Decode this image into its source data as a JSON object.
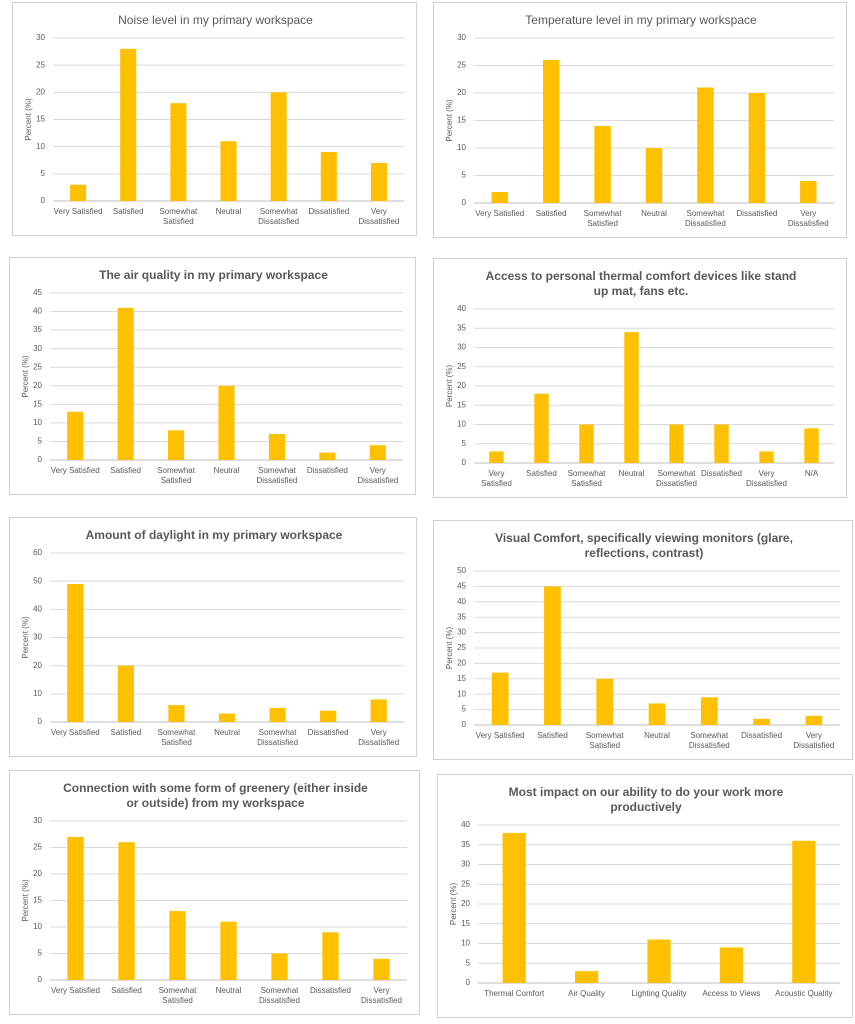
{
  "chart_data": [
    {
      "type": "bar",
      "title": "Noise level in my primary workspace",
      "title_bold": false,
      "ylabel": "Percent (%)",
      "categories": [
        "Very Satisfied",
        "Satisfied",
        "Somewhat Satisfied",
        "Neutral",
        "Somewhat Dissatisfied",
        "Dissatisfied",
        "Very Dissatisfied"
      ],
      "values": [
        3,
        28,
        18,
        11,
        20,
        9,
        7
      ],
      "color": "#ffc000",
      "ylim": [
        0,
        30
      ],
      "yticks": [
        0,
        5,
        10,
        15,
        20,
        25,
        30
      ],
      "grid": true
    },
    {
      "type": "bar",
      "title": "Temperature level in my primary workspace",
      "title_bold": false,
      "ylabel": "Percent (%)",
      "categories": [
        "Very Satisfied",
        "Satisfied",
        "Somewhat Satisfied",
        "Neutral",
        "Somewhat Dissatisfied",
        "Dissatisfied",
        "Very Dissatisfied"
      ],
      "values": [
        2,
        26,
        14,
        10,
        21,
        20,
        4
      ],
      "color": "#ffc000",
      "ylim": [
        0,
        30
      ],
      "yticks": [
        0,
        5,
        10,
        15,
        20,
        25,
        30
      ],
      "grid": true
    },
    {
      "type": "bar",
      "title": "The air quality in my primary workspace",
      "title_bold": true,
      "ylabel": "Percent (%)",
      "categories": [
        "Very Satisfied",
        "Satisfied",
        "Somewhat Satisfied",
        "Neutral",
        "Somewhat Dissatisfied",
        "Dissatisfied",
        "Very Dissatisfied"
      ],
      "values": [
        13,
        41,
        8,
        20,
        7,
        2,
        4
      ],
      "color": "#ffc000",
      "ylim": [
        0,
        45
      ],
      "yticks": [
        0,
        5,
        10,
        15,
        20,
        25,
        30,
        35,
        40,
        45
      ],
      "grid": true
    },
    {
      "type": "bar",
      "title": "Access to personal thermal comfort devices like stand up mat, fans etc.",
      "title_bold": true,
      "ylabel": "Percent (%)",
      "categories": [
        "Very Satisfied",
        "Satisfied",
        "Somewhat Satisfied",
        "Neutral",
        "Somewhat Dissatisfied",
        "Dissatisfied",
        "Very Dissatisfied",
        "N/A"
      ],
      "values": [
        3,
        18,
        10,
        34,
        10,
        10,
        3,
        9
      ],
      "color": "#ffc000",
      "ylim": [
        0,
        40
      ],
      "yticks": [
        0,
        5,
        10,
        15,
        20,
        25,
        30,
        35,
        40
      ],
      "grid": true
    },
    {
      "type": "bar",
      "title": "Amount of daylight in my primary workspace",
      "title_bold": true,
      "ylabel": "Percent (%)",
      "categories": [
        "Very Satisfied",
        "Satisfied",
        "Somewhat Satisfied",
        "Neutral",
        "Somewhat Dissatisfied",
        "Dissatisfied",
        "Very Dissatisfied"
      ],
      "values": [
        49,
        20,
        6,
        3,
        5,
        4,
        8
      ],
      "color": "#ffc000",
      "ylim": [
        0,
        60
      ],
      "yticks": [
        0,
        10,
        20,
        30,
        40,
        50,
        60
      ],
      "grid": true
    },
    {
      "type": "bar",
      "title": "Visual Comfort, specifically viewing monitors (glare, reflections, contrast)",
      "title_bold": true,
      "ylabel": "Percent (%)",
      "categories": [
        "Very Satisfied",
        "Satisfied",
        "Somewhat Satisfied",
        "Neutral",
        "Somewhat Dissatisfied",
        "Dissatisfied",
        "Very Dissatisfied"
      ],
      "values": [
        17,
        45,
        15,
        7,
        9,
        2,
        3
      ],
      "color": "#ffc000",
      "ylim": [
        0,
        50
      ],
      "yticks": [
        0,
        5,
        10,
        15,
        20,
        25,
        30,
        35,
        40,
        45,
        50
      ],
      "grid": true
    },
    {
      "type": "bar",
      "title": "Connection with some form of greenery (either inside or outside) from my workspace",
      "title_bold": true,
      "ylabel": "Percent (%)",
      "categories": [
        "Very Satisfied",
        "Satisfied",
        "Somewhat Satisfied",
        "Neutral",
        "Somewhat Dissatisfied",
        "Dissatisfied",
        "Very Dissatisfied"
      ],
      "values": [
        27,
        26,
        13,
        11,
        5,
        9,
        4
      ],
      "color": "#ffc000",
      "ylim": [
        0,
        30
      ],
      "yticks": [
        0,
        5,
        10,
        15,
        20,
        25,
        30
      ],
      "grid": true
    },
    {
      "type": "bar",
      "title": "Most impact on our ability to do your work more productively",
      "title_bold": true,
      "ylabel": "Percent (%)",
      "categories": [
        "Thermal Comfort",
        "Air Quality",
        "Lighting Quality",
        "Access to Views",
        "Acoustic Quality"
      ],
      "values": [
        38,
        3,
        11,
        9,
        36
      ],
      "color": "#ffc000",
      "ylim": [
        0,
        40
      ],
      "yticks": [
        0,
        5,
        10,
        15,
        20,
        25,
        30,
        35,
        40
      ],
      "grid": true
    }
  ]
}
